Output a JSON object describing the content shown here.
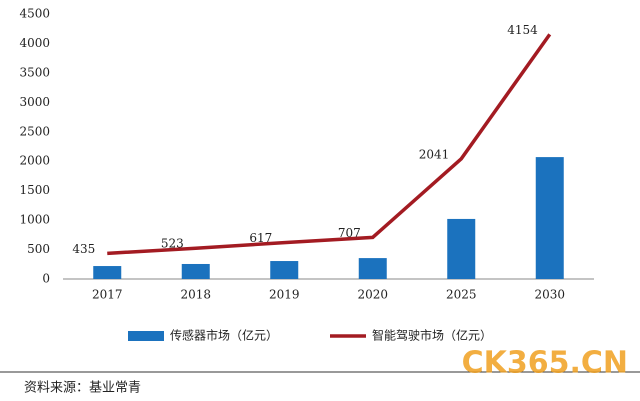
{
  "chart_data": {
    "type": "combo",
    "categories": [
      "2017",
      "2018",
      "2019",
      "2020",
      "2025",
      "2030"
    ],
    "series": [
      {
        "name": "传感器市场（亿元）",
        "type": "bar",
        "color": "#1b72be",
        "values": [
          220,
          255,
          305,
          355,
          1020,
          2070
        ]
      },
      {
        "name": "智能驾驶市场（亿元）",
        "type": "line",
        "color": "#a31b22",
        "values": [
          435,
          523,
          617,
          707,
          2041,
          4154
        ],
        "data_labels": true
      }
    ],
    "ylim": [
      0,
      4500
    ],
    "yticks": [
      0,
      500,
      1000,
      1500,
      2000,
      2500,
      3000,
      3500,
      4000,
      4500
    ],
    "grid": false,
    "legend": "bottom",
    "source": "资料来源：基业常青",
    "watermark": "CK365.CN"
  }
}
